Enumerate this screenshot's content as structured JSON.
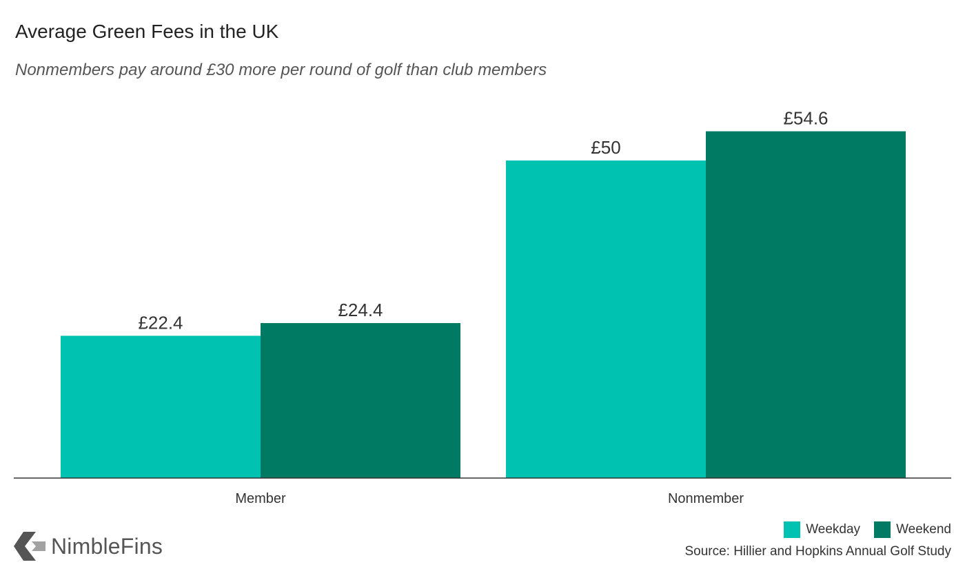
{
  "chart_data": {
    "type": "bar",
    "title": "Average Green Fees in the UK",
    "subtitle": "Nonmembers pay around £30 more per round of golf than club members",
    "categories": [
      "Member",
      "Nonmember"
    ],
    "series": [
      {
        "name": "Weekday",
        "values": [
          22.4,
          50
        ],
        "labels": [
          "£22.4",
          "£50"
        ],
        "color": "#00c2b0"
      },
      {
        "name": "Weekend",
        "values": [
          24.4,
          54.6
        ],
        "labels": [
          "£24.4",
          "£54.6"
        ],
        "color": "#007a63"
      }
    ],
    "xlabel": "",
    "ylabel": "",
    "ylim": [
      0,
      59
    ],
    "grid": false,
    "legend_position": "bottom-right"
  },
  "source": "Source: Hillier and Hopkins Annual Golf Study",
  "logo": {
    "text": "NimbleFins",
    "icon": "nimblefins-chevron-icon",
    "color": "#555555"
  },
  "colors": {
    "axis": "#333333",
    "label_text": "#333333"
  }
}
